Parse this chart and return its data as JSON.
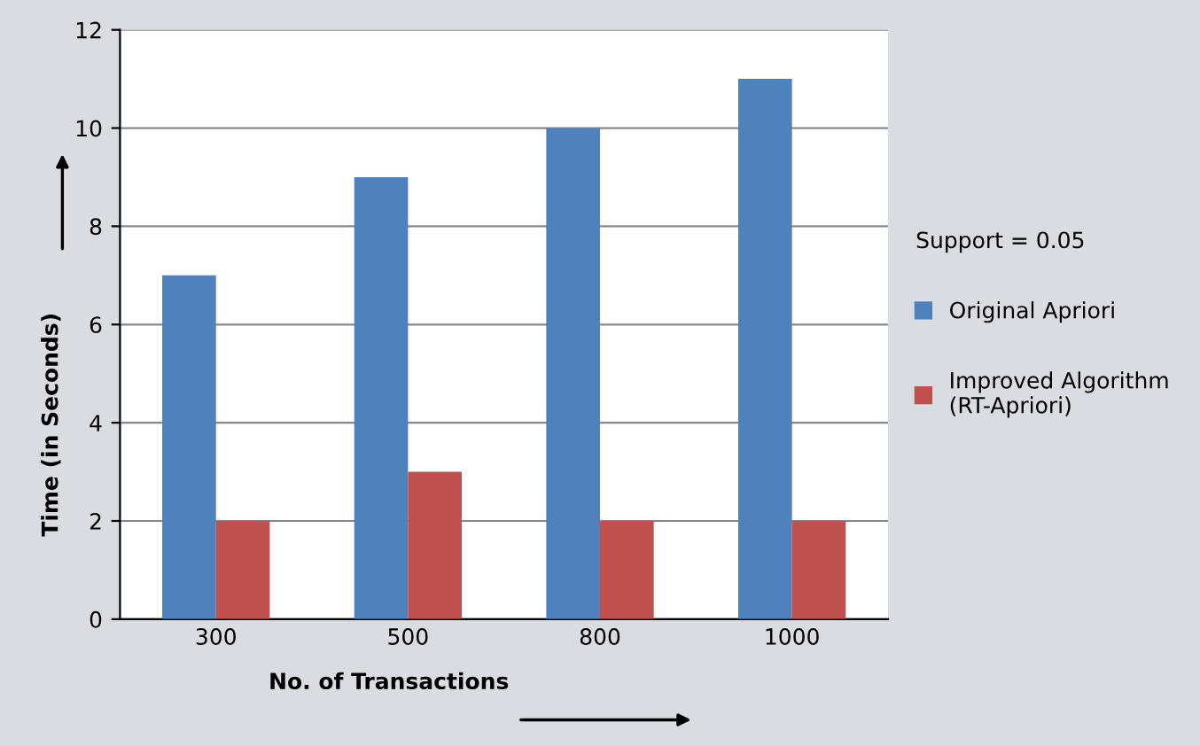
{
  "chart_data": {
    "type": "bar",
    "xlabel": "No. of Transactions",
    "ylabel": "Time (in Seconds)",
    "legend_title": "Support = 0.05",
    "categories": [
      "300",
      "500",
      "800",
      "1000"
    ],
    "series": [
      {
        "name": "Original Apriori",
        "color": "#4f81bd",
        "values": [
          7,
          9,
          10,
          11
        ]
      },
      {
        "name": "Improved Algorithm\n(RT-Apriori)",
        "color": "#c0504d",
        "values": [
          2,
          3,
          2,
          2
        ]
      }
    ],
    "ylim": [
      0,
      12
    ],
    "yticks": [
      0,
      2,
      4,
      6,
      8,
      10,
      12
    ],
    "grid": "y",
    "legend": "right"
  }
}
